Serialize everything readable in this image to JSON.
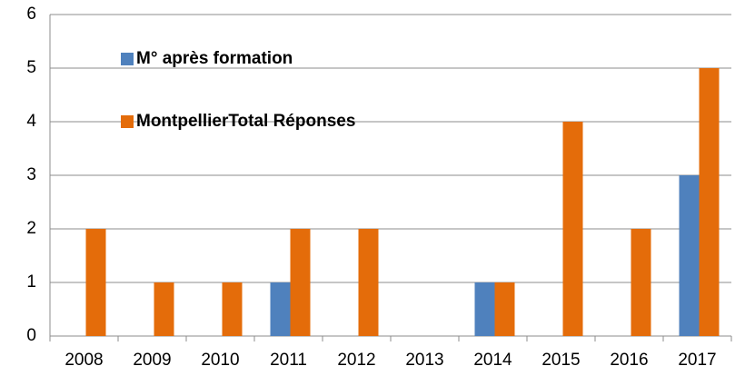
{
  "chart_data": {
    "type": "bar",
    "categories": [
      "2008",
      "2009",
      "2010",
      "2011",
      "2012",
      "2013",
      "2014",
      "2015",
      "2016",
      "2017"
    ],
    "series": [
      {
        "name": "M° après formation",
        "color": "#4f81bd",
        "values": [
          0,
          0,
          0,
          1,
          0,
          0,
          1,
          0,
          0,
          3
        ]
      },
      {
        "name": "MontpellierTotal Réponses",
        "color": "#e46c0a",
        "values": [
          2,
          1,
          1,
          2,
          2,
          0,
          1,
          4,
          2,
          5
        ]
      }
    ],
    "ylim": [
      0,
      6
    ],
    "yticks": [
      0,
      1,
      2,
      3,
      4,
      5,
      6
    ],
    "grid": true
  }
}
